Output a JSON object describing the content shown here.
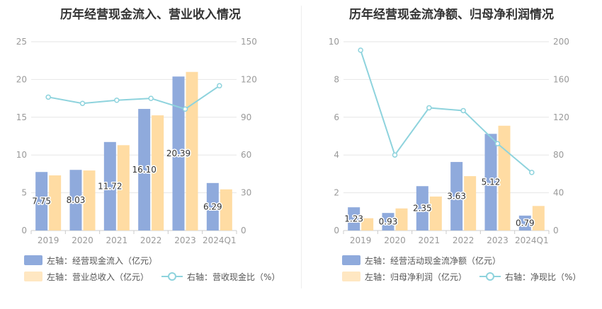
{
  "colors": {
    "bar1": "#8FAADC",
    "bar2": "#FFDCA3",
    "line": "#8ED3DD",
    "axis": "#999999",
    "grid": "#E6E6E6"
  },
  "chart_data": [
    {
      "type": "bar",
      "title": "历年经营现金流入、营业收入情况",
      "categories": [
        "2019",
        "2020",
        "2021",
        "2022",
        "2023",
        "2024Q1"
      ],
      "left_axis": {
        "ylim": [
          0,
          25
        ],
        "ticks": [
          "0",
          "5",
          "10",
          "15",
          "20",
          "25"
        ]
      },
      "right_axis": {
        "ylim": [
          0,
          150
        ],
        "ticks": [
          "0",
          "30",
          "60",
          "90",
          "120",
          "150"
        ]
      },
      "series": [
        {
          "name": "左轴：经营现金流入（亿元）",
          "type": "bar",
          "axis": "left",
          "values": [
            7.75,
            8.03,
            11.72,
            16.1,
            20.39,
            6.29
          ],
          "labels": [
            "7.75",
            "8.03",
            "11.72",
            "16.10",
            "20.39",
            "6.29"
          ]
        },
        {
          "name": "左轴：营业总收入（亿元）",
          "type": "bar",
          "axis": "left",
          "values": [
            7.3,
            7.95,
            11.3,
            15.25,
            21.0,
            5.45
          ]
        },
        {
          "name": "右轴：营收现金比（%）",
          "type": "line",
          "axis": "right",
          "values": [
            106,
            101,
            103.5,
            105,
            96.5,
            115
          ]
        }
      ]
    },
    {
      "type": "bar",
      "title": "历年经营现金流净额、归母净利润情况",
      "categories": [
        "2019",
        "2020",
        "2021",
        "2022",
        "2023",
        "2024Q1"
      ],
      "left_axis": {
        "ylim": [
          0,
          10
        ],
        "ticks": [
          "0",
          "2",
          "4",
          "6",
          "8",
          "10"
        ]
      },
      "right_axis": {
        "ylim": [
          0,
          200
        ],
        "ticks": [
          "0",
          "40",
          "80",
          "120",
          "160",
          "200"
        ]
      },
      "series": [
        {
          "name": "左轴：经营活动现金流净额（亿元）",
          "type": "bar",
          "axis": "left",
          "values": [
            1.23,
            0.93,
            2.35,
            3.63,
            5.12,
            0.79
          ],
          "labels": [
            "1.23",
            "0.93",
            "2.35",
            "3.63",
            "5.12",
            "0.79"
          ]
        },
        {
          "name": "左轴：归母净利润（亿元）",
          "type": "bar",
          "axis": "left",
          "values": [
            0.65,
            1.17,
            1.8,
            2.88,
            5.55,
            1.3
          ]
        },
        {
          "name": "右轴：净现比（%）",
          "type": "line",
          "axis": "right",
          "values": [
            191,
            80,
            130,
            127,
            92,
            61.5
          ]
        }
      ]
    }
  ]
}
